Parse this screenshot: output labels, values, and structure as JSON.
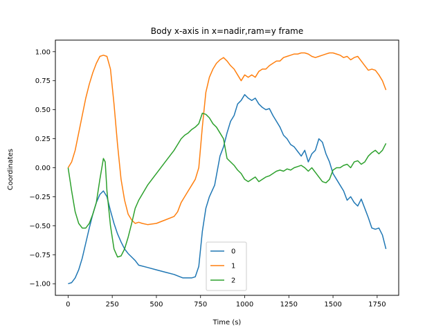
{
  "chart_data": {
    "type": "line",
    "title": "Body x-axis in x=nadir,ram=y frame",
    "xlabel": "Time (s)",
    "ylabel": "Coordinates",
    "xlim": [
      -72,
      1872
    ],
    "ylim": [
      -1.1,
      1.1
    ],
    "xticks": [
      0,
      250,
      500,
      750,
      1000,
      1250,
      1500,
      1750
    ],
    "yticks": [
      -1.0,
      -0.75,
      -0.5,
      -0.25,
      0.0,
      0.25,
      0.5,
      0.75,
      1.0
    ],
    "xtick_labels": [
      "0",
      "250",
      "500",
      "750",
      "1000",
      "1250",
      "1500",
      "1750"
    ],
    "ytick_labels": [
      "−1.00",
      "−0.75",
      "−0.50",
      "−0.25",
      "0.00",
      "0.25",
      "0.50",
      "0.75",
      "1.00"
    ],
    "grid": false,
    "legend_position": "lower-center",
    "series": [
      {
        "name": "0",
        "color": "#1f77b4",
        "points": [
          [
            0,
            -1.0
          ],
          [
            20,
            -0.99
          ],
          [
            40,
            -0.95
          ],
          [
            60,
            -0.88
          ],
          [
            80,
            -0.78
          ],
          [
            100,
            -0.65
          ],
          [
            120,
            -0.52
          ],
          [
            140,
            -0.4
          ],
          [
            160,
            -0.3
          ],
          [
            180,
            -0.23
          ],
          [
            200,
            -0.2
          ],
          [
            220,
            -0.25
          ],
          [
            240,
            -0.37
          ],
          [
            260,
            -0.48
          ],
          [
            280,
            -0.57
          ],
          [
            300,
            -0.64
          ],
          [
            320,
            -0.7
          ],
          [
            340,
            -0.74
          ],
          [
            360,
            -0.77
          ],
          [
            380,
            -0.8
          ],
          [
            400,
            -0.84
          ],
          [
            450,
            -0.86
          ],
          [
            500,
            -0.88
          ],
          [
            550,
            -0.9
          ],
          [
            600,
            -0.92
          ],
          [
            650,
            -0.95
          ],
          [
            700,
            -0.95
          ],
          [
            720,
            -0.94
          ],
          [
            740,
            -0.85
          ],
          [
            760,
            -0.55
          ],
          [
            780,
            -0.35
          ],
          [
            800,
            -0.25
          ],
          [
            830,
            -0.15
          ],
          [
            860,
            0.1
          ],
          [
            880,
            0.18
          ],
          [
            900,
            0.3
          ],
          [
            920,
            0.4
          ],
          [
            940,
            0.45
          ],
          [
            960,
            0.55
          ],
          [
            980,
            0.58
          ],
          [
            1000,
            0.63
          ],
          [
            1020,
            0.6
          ],
          [
            1040,
            0.58
          ],
          [
            1060,
            0.6
          ],
          [
            1080,
            0.55
          ],
          [
            1100,
            0.52
          ],
          [
            1120,
            0.5
          ],
          [
            1140,
            0.51
          ],
          [
            1160,
            0.45
          ],
          [
            1180,
            0.4
          ],
          [
            1200,
            0.35
          ],
          [
            1220,
            0.28
          ],
          [
            1240,
            0.25
          ],
          [
            1260,
            0.2
          ],
          [
            1280,
            0.18
          ],
          [
            1300,
            0.14
          ],
          [
            1320,
            0.1
          ],
          [
            1340,
            0.15
          ],
          [
            1360,
            0.05
          ],
          [
            1380,
            0.12
          ],
          [
            1400,
            0.15
          ],
          [
            1420,
            0.25
          ],
          [
            1440,
            0.22
          ],
          [
            1460,
            0.12
          ],
          [
            1480,
            0.05
          ],
          [
            1500,
            -0.05
          ],
          [
            1520,
            -0.1
          ],
          [
            1540,
            -0.15
          ],
          [
            1560,
            -0.2
          ],
          [
            1580,
            -0.28
          ],
          [
            1600,
            -0.25
          ],
          [
            1620,
            -0.3
          ],
          [
            1640,
            -0.33
          ],
          [
            1660,
            -0.27
          ],
          [
            1680,
            -0.35
          ],
          [
            1700,
            -0.43
          ],
          [
            1720,
            -0.52
          ],
          [
            1740,
            -0.53
          ],
          [
            1760,
            -0.52
          ],
          [
            1780,
            -0.58
          ],
          [
            1800,
            -0.7
          ]
        ]
      },
      {
        "name": "1",
        "color": "#ff7f0e",
        "points": [
          [
            0,
            0.0
          ],
          [
            20,
            0.05
          ],
          [
            40,
            0.15
          ],
          [
            60,
            0.3
          ],
          [
            80,
            0.45
          ],
          [
            100,
            0.6
          ],
          [
            120,
            0.72
          ],
          [
            140,
            0.82
          ],
          [
            160,
            0.9
          ],
          [
            180,
            0.96
          ],
          [
            200,
            0.97
          ],
          [
            220,
            0.96
          ],
          [
            240,
            0.85
          ],
          [
            260,
            0.55
          ],
          [
            280,
            0.2
          ],
          [
            300,
            -0.1
          ],
          [
            320,
            -0.28
          ],
          [
            340,
            -0.4
          ],
          [
            360,
            -0.45
          ],
          [
            380,
            -0.48
          ],
          [
            400,
            -0.47
          ],
          [
            420,
            -0.48
          ],
          [
            450,
            -0.49
          ],
          [
            500,
            -0.48
          ],
          [
            550,
            -0.45
          ],
          [
            600,
            -0.42
          ],
          [
            620,
            -0.38
          ],
          [
            640,
            -0.3
          ],
          [
            660,
            -0.25
          ],
          [
            680,
            -0.2
          ],
          [
            700,
            -0.15
          ],
          [
            720,
            -0.1
          ],
          [
            740,
            0.0
          ],
          [
            760,
            0.35
          ],
          [
            780,
            0.65
          ],
          [
            800,
            0.78
          ],
          [
            820,
            0.85
          ],
          [
            840,
            0.9
          ],
          [
            860,
            0.93
          ],
          [
            880,
            0.95
          ],
          [
            900,
            0.92
          ],
          [
            920,
            0.88
          ],
          [
            940,
            0.85
          ],
          [
            960,
            0.8
          ],
          [
            980,
            0.75
          ],
          [
            1000,
            0.8
          ],
          [
            1020,
            0.78
          ],
          [
            1040,
            0.8
          ],
          [
            1060,
            0.78
          ],
          [
            1080,
            0.83
          ],
          [
            1100,
            0.85
          ],
          [
            1120,
            0.85
          ],
          [
            1140,
            0.88
          ],
          [
            1160,
            0.9
          ],
          [
            1180,
            0.92
          ],
          [
            1200,
            0.92
          ],
          [
            1220,
            0.95
          ],
          [
            1240,
            0.96
          ],
          [
            1260,
            0.97
          ],
          [
            1280,
            0.98
          ],
          [
            1300,
            0.98
          ],
          [
            1320,
            0.99
          ],
          [
            1340,
            0.99
          ],
          [
            1360,
            0.98
          ],
          [
            1380,
            0.96
          ],
          [
            1400,
            0.95
          ],
          [
            1420,
            0.96
          ],
          [
            1440,
            0.97
          ],
          [
            1460,
            0.98
          ],
          [
            1480,
            0.99
          ],
          [
            1500,
            0.99
          ],
          [
            1520,
            0.98
          ],
          [
            1540,
            0.97
          ],
          [
            1560,
            0.95
          ],
          [
            1580,
            0.96
          ],
          [
            1600,
            0.93
          ],
          [
            1620,
            0.95
          ],
          [
            1640,
            0.96
          ],
          [
            1660,
            0.92
          ],
          [
            1680,
            0.88
          ],
          [
            1700,
            0.84
          ],
          [
            1720,
            0.85
          ],
          [
            1740,
            0.84
          ],
          [
            1760,
            0.8
          ],
          [
            1780,
            0.75
          ],
          [
            1800,
            0.67
          ]
        ]
      },
      {
        "name": "2",
        "color": "#2ca02c",
        "points": [
          [
            0,
            0.0
          ],
          [
            20,
            -0.2
          ],
          [
            40,
            -0.38
          ],
          [
            60,
            -0.48
          ],
          [
            80,
            -0.52
          ],
          [
            100,
            -0.52
          ],
          [
            120,
            -0.48
          ],
          [
            140,
            -0.4
          ],
          [
            160,
            -0.3
          ],
          [
            180,
            -0.1
          ],
          [
            200,
            0.08
          ],
          [
            210,
            0.05
          ],
          [
            220,
            -0.2
          ],
          [
            240,
            -0.5
          ],
          [
            260,
            -0.7
          ],
          [
            280,
            -0.77
          ],
          [
            300,
            -0.76
          ],
          [
            320,
            -0.7
          ],
          [
            340,
            -0.6
          ],
          [
            360,
            -0.48
          ],
          [
            380,
            -0.35
          ],
          [
            400,
            -0.28
          ],
          [
            450,
            -0.15
          ],
          [
            500,
            -0.05
          ],
          [
            550,
            0.05
          ],
          [
            600,
            0.15
          ],
          [
            620,
            0.2
          ],
          [
            640,
            0.25
          ],
          [
            660,
            0.28
          ],
          [
            680,
            0.3
          ],
          [
            700,
            0.33
          ],
          [
            720,
            0.35
          ],
          [
            740,
            0.38
          ],
          [
            760,
            0.47
          ],
          [
            780,
            0.46
          ],
          [
            800,
            0.43
          ],
          [
            820,
            0.38
          ],
          [
            840,
            0.35
          ],
          [
            860,
            0.3
          ],
          [
            880,
            0.25
          ],
          [
            900,
            0.08
          ],
          [
            920,
            0.05
          ],
          [
            940,
            0.02
          ],
          [
            960,
            -0.02
          ],
          [
            980,
            -0.05
          ],
          [
            1000,
            -0.1
          ],
          [
            1020,
            -0.12
          ],
          [
            1040,
            -0.1
          ],
          [
            1060,
            -0.08
          ],
          [
            1080,
            -0.12
          ],
          [
            1100,
            -0.1
          ],
          [
            1120,
            -0.08
          ],
          [
            1140,
            -0.07
          ],
          [
            1160,
            -0.05
          ],
          [
            1180,
            -0.03
          ],
          [
            1200,
            -0.02
          ],
          [
            1220,
            -0.03
          ],
          [
            1240,
            -0.01
          ],
          [
            1260,
            -0.02
          ],
          [
            1280,
            0.0
          ],
          [
            1300,
            0.01
          ],
          [
            1320,
            0.02
          ],
          [
            1340,
            0.0
          ],
          [
            1360,
            -0.03
          ],
          [
            1380,
            0.0
          ],
          [
            1400,
            -0.04
          ],
          [
            1420,
            -0.08
          ],
          [
            1440,
            -0.12
          ],
          [
            1460,
            -0.13
          ],
          [
            1480,
            -0.1
          ],
          [
            1500,
            -0.02
          ],
          [
            1520,
            0.0
          ],
          [
            1540,
            0.0
          ],
          [
            1560,
            0.02
          ],
          [
            1580,
            0.03
          ],
          [
            1600,
            0.0
          ],
          [
            1620,
            0.05
          ],
          [
            1640,
            0.06
          ],
          [
            1660,
            0.03
          ],
          [
            1680,
            0.05
          ],
          [
            1700,
            0.1
          ],
          [
            1720,
            0.13
          ],
          [
            1740,
            0.15
          ],
          [
            1760,
            0.12
          ],
          [
            1780,
            0.15
          ],
          [
            1800,
            0.21
          ]
        ]
      }
    ]
  }
}
